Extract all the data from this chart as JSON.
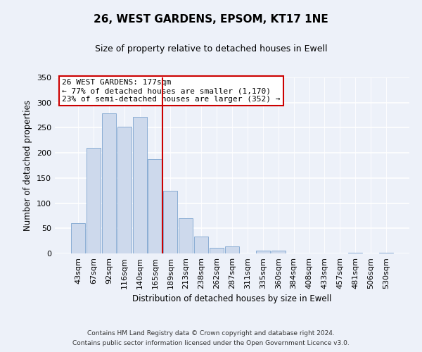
{
  "title": "26, WEST GARDENS, EPSOM, KT17 1NE",
  "subtitle": "Size of property relative to detached houses in Ewell",
  "xlabel": "Distribution of detached houses by size in Ewell",
  "ylabel": "Number of detached properties",
  "bar_labels": [
    "43sqm",
    "67sqm",
    "92sqm",
    "116sqm",
    "140sqm",
    "165sqm",
    "189sqm",
    "213sqm",
    "238sqm",
    "262sqm",
    "287sqm",
    "311sqm",
    "335sqm",
    "360sqm",
    "384sqm",
    "408sqm",
    "433sqm",
    "457sqm",
    "481sqm",
    "506sqm",
    "530sqm"
  ],
  "bar_values": [
    60,
    210,
    278,
    252,
    272,
    187,
    125,
    70,
    34,
    11,
    14,
    0,
    5,
    5,
    0,
    0,
    0,
    0,
    2,
    0,
    2
  ],
  "bar_color": "#cdd9ec",
  "bar_edge_color": "#8aadd4",
  "vline_x": 5.5,
  "vline_color": "#cc0000",
  "annotation_title": "26 WEST GARDENS: 177sqm",
  "annotation_line1": "← 77% of detached houses are smaller (1,170)",
  "annotation_line2": "23% of semi-detached houses are larger (352) →",
  "annotation_box_color": "#ffffff",
  "annotation_box_edge": "#cc0000",
  "ylim": [
    0,
    350
  ],
  "yticks": [
    0,
    50,
    100,
    150,
    200,
    250,
    300,
    350
  ],
  "footer1": "Contains HM Land Registry data © Crown copyright and database right 2024.",
  "footer2": "Contains public sector information licensed under the Open Government Licence v3.0.",
  "bg_color": "#edf1f9"
}
